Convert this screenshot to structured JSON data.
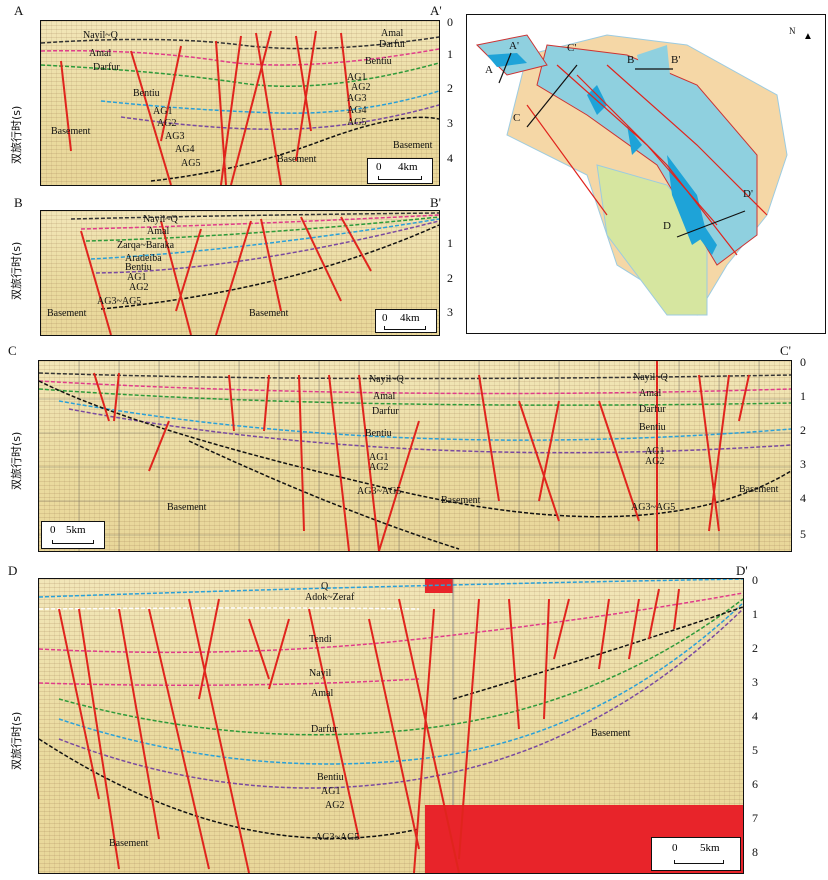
{
  "axis_title": "双旅行时(s)",
  "panelA": {
    "start": "A",
    "end": "A'",
    "ticks": [
      "0",
      "1",
      "2",
      "3",
      "4"
    ],
    "scale": {
      "zero": "0",
      "length": "4km"
    },
    "labels": [
      "Nayil~Q",
      "Amal",
      "Darfur",
      "Bentiu",
      "AG1",
      "AG2",
      "AG3",
      "AG4",
      "AG5",
      "Basement",
      "Amal",
      "Darfur",
      "Bentiu",
      "AG1",
      "AG2",
      "AG3",
      "AG4",
      "AG5",
      "Basement",
      "Basement"
    ]
  },
  "panelB": {
    "start": "B",
    "end": "B'",
    "ticks": [
      "1",
      "2",
      "3"
    ],
    "scale": {
      "zero": "0",
      "length": "4km"
    },
    "labels": [
      "Nayil~Q",
      "Amal",
      "Zarqa~Baraka",
      "Aradeiba",
      "Bentiu",
      "AG1",
      "AG2",
      "AG3~AG5",
      "Basement",
      "Basement"
    ]
  },
  "map": {
    "north": "N",
    "labels": [
      "A",
      "A'",
      "C'",
      "C",
      "B",
      "B'",
      "D'",
      "D"
    ]
  },
  "panelC": {
    "start": "C",
    "end": "C'",
    "ticks": [
      "0",
      "1",
      "2",
      "3",
      "4",
      "5"
    ],
    "scale": {
      "zero": "0",
      "length": "5km"
    },
    "labels": [
      "Nayil~Q",
      "Amal",
      "Darfur",
      "Bentiu",
      "AG1",
      "AG2",
      "AG3~AG5",
      "Basement",
      "Basement",
      "Nayil~Q",
      "Amal",
      "Darfur",
      "Bentiu",
      "AG1",
      "AG2",
      "AG3~AG5",
      "Basement"
    ]
  },
  "panelD": {
    "start": "D",
    "end": "D'",
    "ticks": [
      "0",
      "1",
      "2",
      "3",
      "4",
      "5",
      "6",
      "7",
      "8"
    ],
    "scale": {
      "zero": "0",
      "length": "5km"
    },
    "labels": [
      "Q",
      "Adok~Zeraf",
      "Tendi",
      "Nayil",
      "Amal",
      "Darfur",
      "Bentiu",
      "AG1",
      "AG2",
      "AG3~AG5",
      "Basement",
      "Basement"
    ]
  },
  "colors": {
    "fault": "#e0241d",
    "seismic_bg": "#ecdca2",
    "map_blue": "#8fd0df",
    "map_deep": "#1ea3d8",
    "map_tan": "#f5d7a6",
    "map_green": "#d6e6a0",
    "red_block": "#e8242a"
  }
}
